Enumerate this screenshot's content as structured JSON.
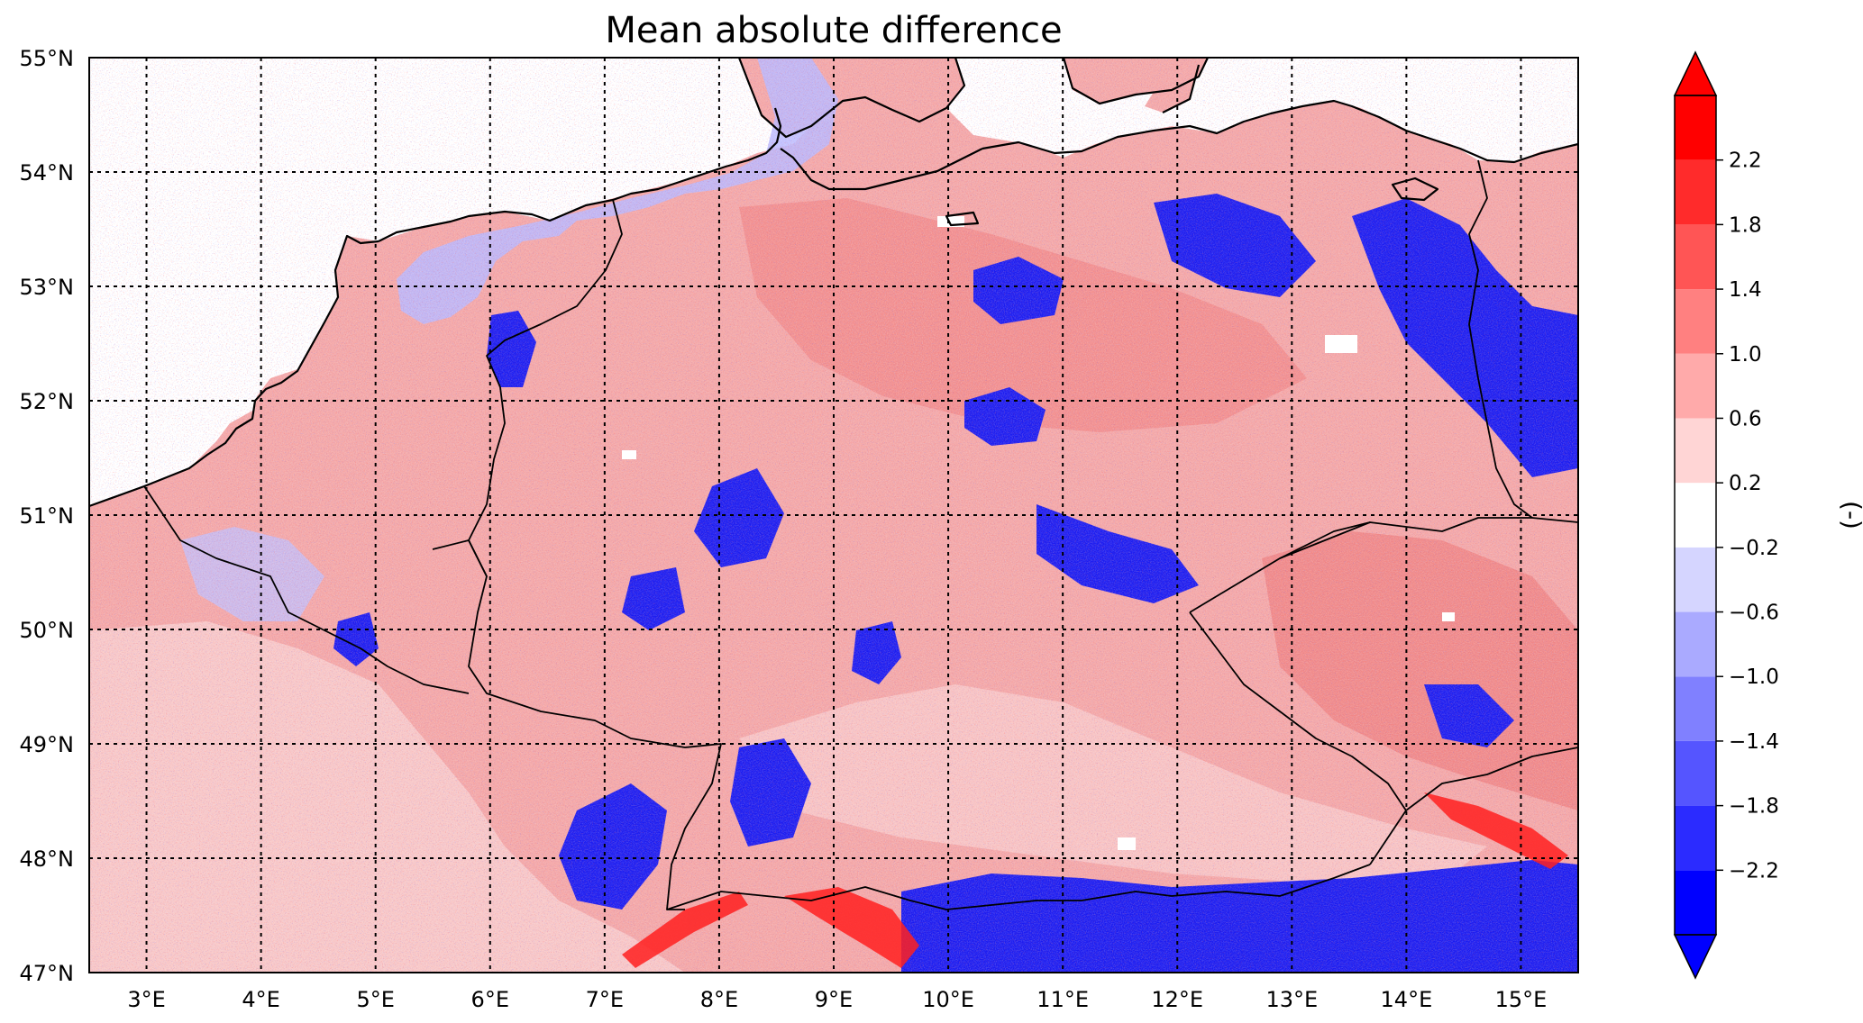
{
  "title": "Mean absolute difference",
  "map": {
    "lon_range": [
      2.5,
      15.5
    ],
    "lat_range": [
      47,
      55
    ],
    "lon_ticks": [
      {
        "value": 3,
        "label": "3°E"
      },
      {
        "value": 4,
        "label": "4°E"
      },
      {
        "value": 5,
        "label": "5°E"
      },
      {
        "value": 6,
        "label": "6°E"
      },
      {
        "value": 7,
        "label": "7°E"
      },
      {
        "value": 8,
        "label": "8°E"
      },
      {
        "value": 9,
        "label": "9°E"
      },
      {
        "value": 10,
        "label": "10°E"
      },
      {
        "value": 11,
        "label": "11°E"
      },
      {
        "value": 12,
        "label": "12°E"
      },
      {
        "value": 13,
        "label": "13°E"
      },
      {
        "value": 14,
        "label": "14°E"
      },
      {
        "value": 15,
        "label": "15°E"
      }
    ],
    "lat_ticks": [
      {
        "value": 47,
        "label": "47°N"
      },
      {
        "value": 48,
        "label": "48°N"
      },
      {
        "value": 49,
        "label": "49°N"
      },
      {
        "value": 50,
        "label": "50°N"
      },
      {
        "value": 51,
        "label": "51°N"
      },
      {
        "value": 52,
        "label": "52°N"
      },
      {
        "value": 53,
        "label": "53°N"
      },
      {
        "value": 54,
        "label": "54°N"
      },
      {
        "value": 55,
        "label": "55°N"
      }
    ],
    "gridlines": true,
    "gridline_style": "dotted",
    "coastlines": true,
    "borders": true
  },
  "colorbar": {
    "label": "(-)",
    "extend": "both",
    "boundaries": [
      -2.6,
      -2.2,
      -1.8,
      -1.4,
      -1.0,
      -0.6,
      -0.2,
      0.2,
      0.6,
      1.0,
      1.4,
      1.8,
      2.2,
      2.6
    ],
    "tick_values": [
      -2.2,
      -1.8,
      -1.4,
      -1.0,
      -0.6,
      -0.2,
      0.2,
      0.6,
      1.0,
      1.4,
      1.8,
      2.2
    ],
    "tick_labels": [
      "−2.2",
      "−1.8",
      "−1.4",
      "−1.0",
      "−0.6",
      "−0.2",
      "0.2",
      "0.6",
      "1.0",
      "1.4",
      "1.8",
      "2.2"
    ],
    "colors": [
      "#0000ff",
      "#2b2bff",
      "#5555ff",
      "#8080ff",
      "#aaaaff",
      "#d5d5ff",
      "#ffffff",
      "#ffd5d5",
      "#ffaaaa",
      "#ff8080",
      "#ff5555",
      "#ff2b2b",
      "#ff0000"
    ],
    "under_color": "#0000ff",
    "over_color": "#ff0000"
  },
  "colors": {
    "water": "#ffffff",
    "coast_line": "#000000",
    "grid_line": "#000000"
  }
}
